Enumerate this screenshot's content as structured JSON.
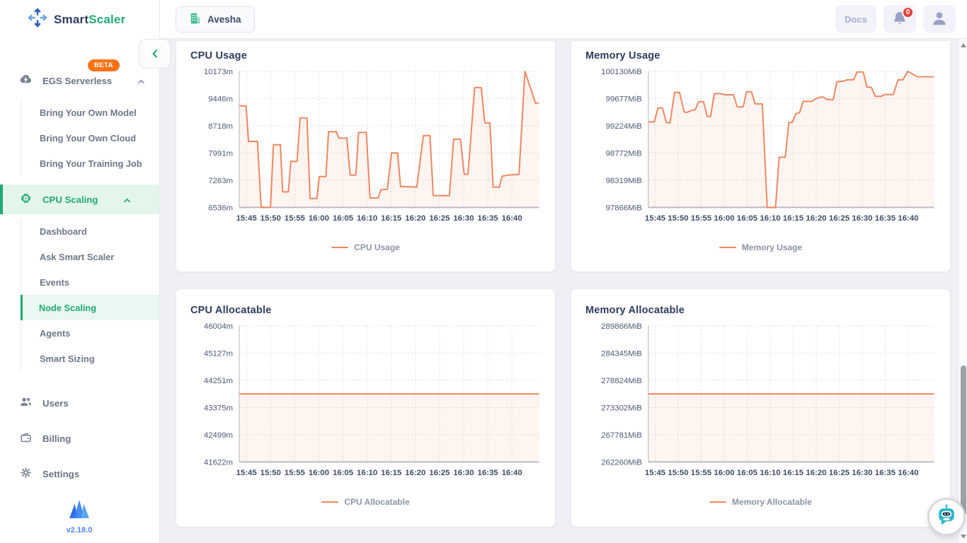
{
  "brand": {
    "smart": "Smart",
    "scaler": "Scaler",
    "version": "v2.18.0"
  },
  "header": {
    "org": "Avesha",
    "docs": "Docs",
    "notifications": "0"
  },
  "sidebar": {
    "egs": {
      "label": "EGS Serverless",
      "badge": "BETA"
    },
    "egs_items": [
      "Bring Your Own Model",
      "Bring Your Own Cloud",
      "Bring Your Training Job"
    ],
    "cpu": {
      "label": "CPU Scaling"
    },
    "cpu_items": [
      "Dashboard",
      "Ask Smart Scaler",
      "Events",
      "Node Scaling",
      "Agents",
      "Smart Sizing"
    ],
    "users": "Users",
    "billing": "Billing",
    "settings": "Settings"
  },
  "colors": {
    "green": "#21a973",
    "green_bg": "#e4f5ec",
    "badge_orange": "#f97316",
    "line_orange": "#f0875f",
    "alert_red": "#e8413c",
    "link_blue": "#4f86f7",
    "teal": "#29b7c8",
    "border": "#e7eaf0"
  },
  "chart_data": [
    {
      "type": "line",
      "title": "CPU Usage",
      "legend": "CPU Usage",
      "unit": "m",
      "x_ticks": [
        "15:45",
        "15:50",
        "15:55",
        "16:00",
        "16:05",
        "16:10",
        "16:15",
        "16:20",
        "16:25",
        "16:30",
        "16:35",
        "16:40"
      ],
      "y_ticks": [
        "6536m",
        "7263m",
        "7991m",
        "8718m",
        "9446m",
        "10173m"
      ],
      "y_min": 6536,
      "y_max": 10173,
      "points": [
        [
          0,
          9250
        ],
        [
          0.023,
          9250
        ],
        [
          0.031,
          8300
        ],
        [
          0.061,
          8300
        ],
        [
          0.073,
          6536
        ],
        [
          0.104,
          6536
        ],
        [
          0.114,
          8210
        ],
        [
          0.137,
          8210
        ],
        [
          0.145,
          6950
        ],
        [
          0.164,
          6950
        ],
        [
          0.172,
          7765
        ],
        [
          0.193,
          7765
        ],
        [
          0.203,
          8930
        ],
        [
          0.226,
          8930
        ],
        [
          0.236,
          6775
        ],
        [
          0.259,
          6775
        ],
        [
          0.267,
          7360
        ],
        [
          0.289,
          7360
        ],
        [
          0.298,
          8560
        ],
        [
          0.324,
          8560
        ],
        [
          0.332,
          8390
        ],
        [
          0.359,
          8390
        ],
        [
          0.37,
          7400
        ],
        [
          0.389,
          7400
        ],
        [
          0.398,
          8540
        ],
        [
          0.424,
          8540
        ],
        [
          0.436,
          6790
        ],
        [
          0.463,
          6790
        ],
        [
          0.473,
          7010
        ],
        [
          0.494,
          7020
        ],
        [
          0.508,
          7990
        ],
        [
          0.528,
          7990
        ],
        [
          0.538,
          7095
        ],
        [
          0.592,
          7080
        ],
        [
          0.614,
          8455
        ],
        [
          0.636,
          8455
        ],
        [
          0.647,
          6850
        ],
        [
          0.701,
          6850
        ],
        [
          0.715,
          8360
        ],
        [
          0.738,
          8360
        ],
        [
          0.75,
          7420
        ],
        [
          0.763,
          7420
        ],
        [
          0.785,
          9740
        ],
        [
          0.807,
          9740
        ],
        [
          0.819,
          8795
        ],
        [
          0.836,
          8795
        ],
        [
          0.847,
          7075
        ],
        [
          0.867,
          7075
        ],
        [
          0.877,
          7370
        ],
        [
          0.896,
          7400
        ],
        [
          0.933,
          7420
        ],
        [
          0.953,
          10173
        ],
        [
          0.988,
          9320
        ],
        [
          1,
          9330
        ]
      ]
    },
    {
      "type": "line",
      "title": "Memory Usage",
      "legend": "Memory Usage",
      "unit": "MiB",
      "x_ticks": [
        "15:45",
        "15:50",
        "15:55",
        "16:00",
        "16:05",
        "16:10",
        "16:15",
        "16:20",
        "16:25",
        "16:30",
        "16:35",
        "16:40"
      ],
      "y_ticks": [
        "97866MiB",
        "98319MiB",
        "98772MiB",
        "99224MiB",
        "99677MiB",
        "100130MiB"
      ],
      "y_min": 97866,
      "y_max": 100130,
      "points": [
        [
          0,
          99290
        ],
        [
          0.021,
          99290
        ],
        [
          0.034,
          99520
        ],
        [
          0.05,
          99520
        ],
        [
          0.063,
          99280
        ],
        [
          0.076,
          99270
        ],
        [
          0.092,
          99780
        ],
        [
          0.109,
          99780
        ],
        [
          0.126,
          99450
        ],
        [
          0.136,
          99450
        ],
        [
          0.151,
          99480
        ],
        [
          0.164,
          99490
        ],
        [
          0.176,
          99625
        ],
        [
          0.193,
          99625
        ],
        [
          0.206,
          99380
        ],
        [
          0.218,
          99380
        ],
        [
          0.231,
          99760
        ],
        [
          0.252,
          99760
        ],
        [
          0.269,
          99740
        ],
        [
          0.298,
          99740
        ],
        [
          0.311,
          99540
        ],
        [
          0.332,
          99540
        ],
        [
          0.344,
          99790
        ],
        [
          0.361,
          99790
        ],
        [
          0.374,
          99590
        ],
        [
          0.399,
          99590
        ],
        [
          0.416,
          97866
        ],
        [
          0.445,
          97866
        ],
        [
          0.458,
          98700
        ],
        [
          0.479,
          98700
        ],
        [
          0.492,
          99280
        ],
        [
          0.504,
          99280
        ],
        [
          0.517,
          99430
        ],
        [
          0.529,
          99440
        ],
        [
          0.542,
          99630
        ],
        [
          0.571,
          99630
        ],
        [
          0.584,
          99667
        ],
        [
          0.601,
          99700
        ],
        [
          0.613,
          99700
        ],
        [
          0.626,
          99660
        ],
        [
          0.647,
          99660
        ],
        [
          0.66,
          99960
        ],
        [
          0.681,
          99965
        ],
        [
          0.697,
          99990
        ],
        [
          0.718,
          99990
        ],
        [
          0.731,
          100120
        ],
        [
          0.752,
          100120
        ],
        [
          0.765,
          99870
        ],
        [
          0.781,
          99860
        ],
        [
          0.794,
          99715
        ],
        [
          0.815,
          99715
        ],
        [
          0.828,
          99745
        ],
        [
          0.857,
          99745
        ],
        [
          0.874,
          99990
        ],
        [
          0.891,
          99990
        ],
        [
          0.908,
          100130
        ],
        [
          0.941,
          100040
        ],
        [
          1,
          100040
        ]
      ]
    },
    {
      "type": "line",
      "title": "CPU Allocatable",
      "legend": "CPU Allocatable",
      "unit": "m",
      "x_ticks": [
        "15:45",
        "15:50",
        "15:55",
        "16:00",
        "16:05",
        "16:10",
        "16:15",
        "16:20",
        "16:25",
        "16:30",
        "16:35",
        "16:40"
      ],
      "y_ticks": [
        "41622m",
        "42499m",
        "43375m",
        "44251m",
        "45127m",
        "46004m"
      ],
      "y_min": 41622,
      "y_max": 46004,
      "points": [
        [
          0,
          43813
        ],
        [
          1,
          43813
        ]
      ]
    },
    {
      "type": "line",
      "title": "Memory Allocatable",
      "legend": "Memory Allocatable",
      "unit": "MiB",
      "x_ticks": [
        "15:45",
        "15:50",
        "15:55",
        "16:00",
        "16:05",
        "16:10",
        "16:15",
        "16:20",
        "16:25",
        "16:30",
        "16:35",
        "16:40"
      ],
      "y_ticks": [
        "262260MiB",
        "267781MiB",
        "273302MiB",
        "278824MiB",
        "284345MiB",
        "289866MiB"
      ],
      "y_min": 262260,
      "y_max": 289866,
      "points": [
        [
          0,
          276063
        ],
        [
          1,
          276063
        ]
      ]
    }
  ]
}
